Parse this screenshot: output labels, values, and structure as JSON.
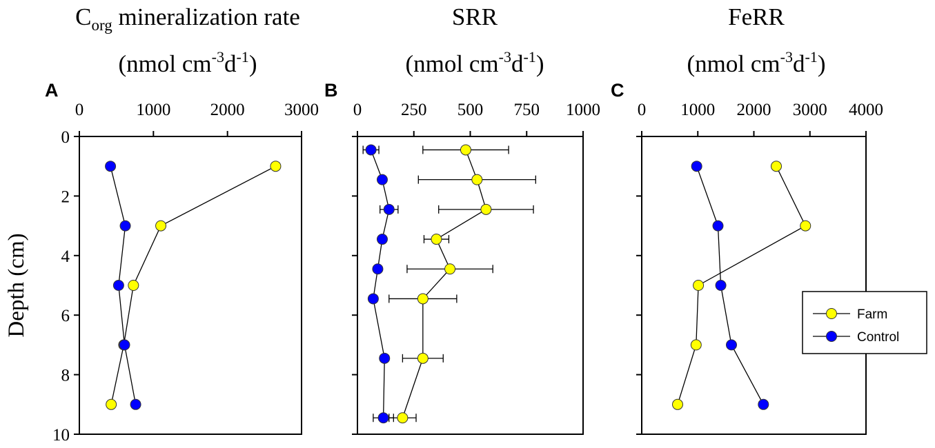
{
  "chart_data": [
    {
      "type": "scatter",
      "panel_letter": "A",
      "title_main": "C",
      "title_sub": "org",
      "title_rest": " mineralization rate",
      "unit": {
        "open": "(nmol cm",
        "sup1": "-3",
        "mid": "d",
        "sup2": "-1",
        "close": ")"
      },
      "xlim": [
        0,
        3000
      ],
      "xticks": [
        "0",
        "1000",
        "2000",
        "3000"
      ],
      "xtick_values": [
        0,
        1000,
        2000,
        3000
      ],
      "ylim": [
        0,
        10
      ],
      "yticks": [
        "0",
        "2",
        "4",
        "6",
        "8",
        "10"
      ],
      "ylabel": "Depth (cm)",
      "series": [
        {
          "name": "Farm",
          "color": "#ffff00",
          "points": [
            [
              2650,
              1
            ],
            [
              1100,
              3
            ],
            [
              730,
              5
            ],
            [
              600,
              7
            ],
            [
              430,
              9
            ]
          ]
        },
        {
          "name": "Control",
          "color": "#0000ff",
          "points": [
            [
              420,
              1
            ],
            [
              620,
              3
            ],
            [
              530,
              5
            ],
            [
              610,
              7
            ],
            [
              760,
              9
            ]
          ]
        }
      ]
    },
    {
      "type": "scatter",
      "panel_letter": "B",
      "title_main": "SRR",
      "unit": {
        "open": "(nmol cm",
        "sup1": "-3",
        "mid": "d",
        "sup2": "-1",
        "close": ")"
      },
      "xlim": [
        0,
        1000
      ],
      "xticks": [
        "0",
        "250",
        "500",
        "750",
        "1000"
      ],
      "xtick_values": [
        0,
        250,
        500,
        750,
        1000
      ],
      "ylim": [
        0,
        10
      ],
      "ylabel": "",
      "series": [
        {
          "name": "Farm",
          "color": "#ffff00",
          "points": [
            [
              480,
              0.45
            ],
            [
              530,
              1.45
            ],
            [
              570,
              2.45
            ],
            [
              350,
              3.45
            ],
            [
              410,
              4.45
            ],
            [
              290,
              5.45
            ],
            [
              290,
              7.45
            ],
            [
              200,
              9.45
            ]
          ],
          "error": [
            190,
            260,
            210,
            55,
            190,
            150,
            90,
            60
          ]
        },
        {
          "name": "Control",
          "color": "#0000ff",
          "points": [
            [
              60,
              0.45
            ],
            [
              110,
              1.45
            ],
            [
              140,
              2.45
            ],
            [
              110,
              3.45
            ],
            [
              90,
              4.45
            ],
            [
              70,
              5.45
            ],
            [
              120,
              7.45
            ],
            [
              115,
              9.45
            ]
          ],
          "error": [
            35,
            0,
            40,
            0,
            0,
            0,
            0,
            45
          ]
        }
      ]
    },
    {
      "type": "scatter",
      "panel_letter": "C",
      "title_main": "FeRR",
      "unit": {
        "open": "(nmol cm",
        "sup1": "-3",
        "mid": "d",
        "sup2": "-1",
        "close": ")"
      },
      "xlim": [
        0,
        4000
      ],
      "xticks": [
        "0",
        "1000",
        "2000",
        "3000",
        "4000"
      ],
      "xtick_values": [
        0,
        1000,
        2000,
        3000,
        4000
      ],
      "ylim": [
        0,
        10
      ],
      "ylabel": "",
      "series": [
        {
          "name": "Farm",
          "color": "#ffff00",
          "points": [
            [
              2400,
              1
            ],
            [
              2920,
              3
            ],
            [
              1010,
              5
            ],
            [
              970,
              7
            ],
            [
              640,
              9
            ]
          ]
        },
        {
          "name": "Control",
          "color": "#0000ff",
          "points": [
            [
              980,
              1
            ],
            [
              1360,
              3
            ],
            [
              1410,
              5
            ],
            [
              1600,
              7
            ],
            [
              2170,
              9
            ]
          ]
        }
      ],
      "legend": [
        "Farm",
        "Control"
      ],
      "legend_position": "right"
    }
  ]
}
